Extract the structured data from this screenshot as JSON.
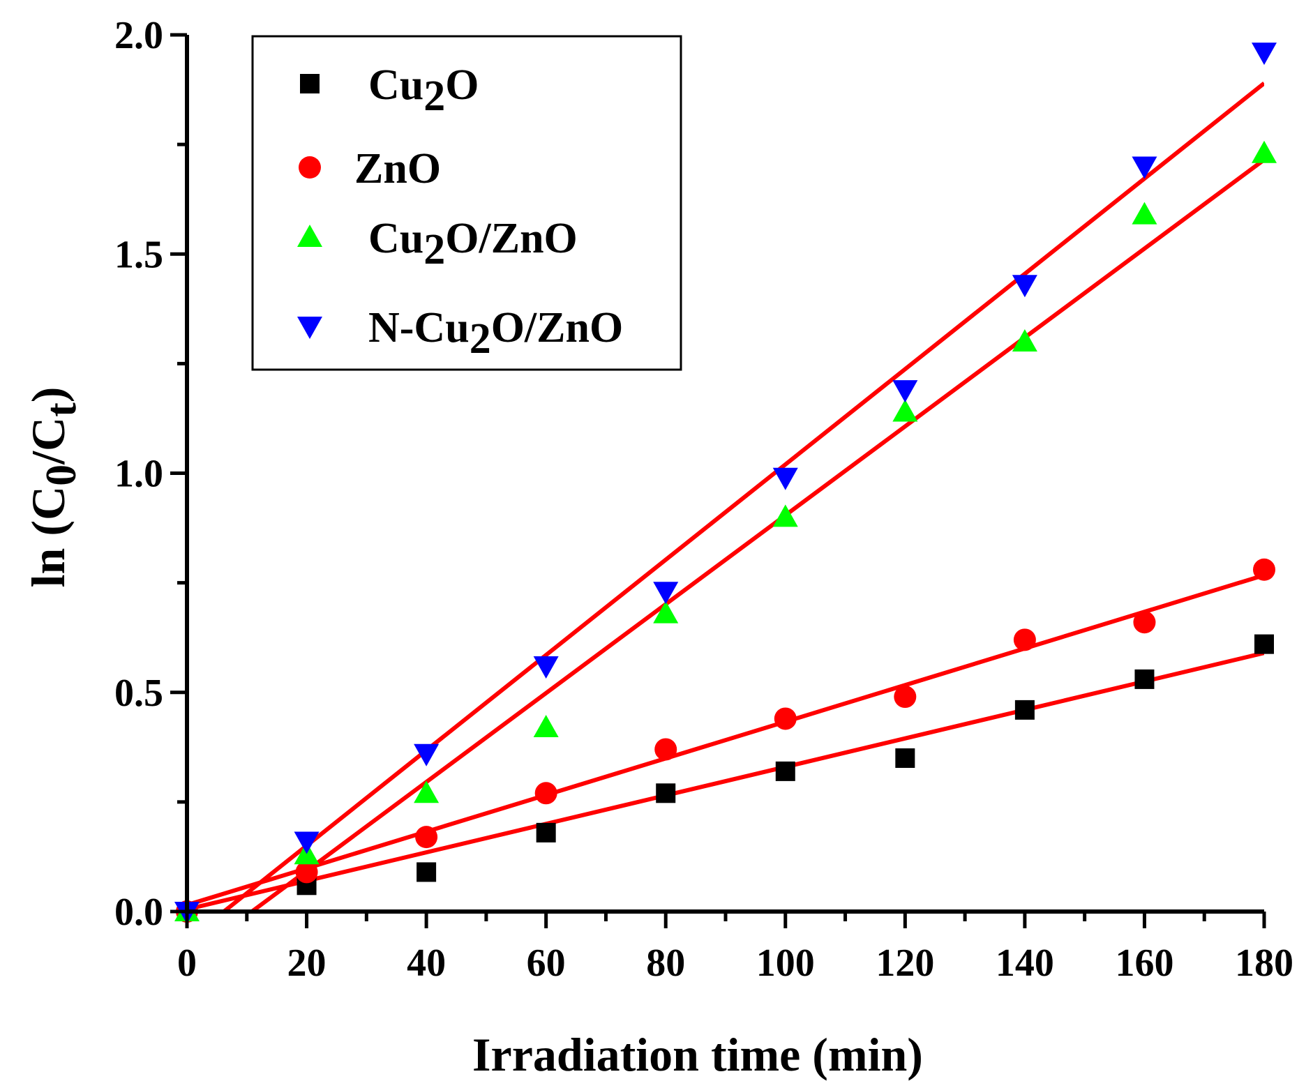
{
  "chart_data": {
    "type": "scatter",
    "title": "",
    "xlabel": "Irradiation time (min)",
    "ylabel": {
      "prefix": "ln (C",
      "sub1": "0",
      "mid": "/C",
      "sub2": "t",
      "suffix": ")"
    },
    "xlim": [
      0,
      180
    ],
    "ylim": [
      0,
      2.0
    ],
    "x_ticks": [
      0,
      20,
      40,
      60,
      80,
      100,
      120,
      140,
      160,
      180
    ],
    "x_tick_labels": [
      "0",
      "20",
      "40",
      "60",
      "80",
      "100",
      "120",
      "140",
      "160",
      "180"
    ],
    "y_ticks": [
      0,
      0.5,
      1.0,
      1.5,
      2.0
    ],
    "y_tick_labels": [
      "0.0",
      "0.5",
      "1.0",
      "1.5",
      "2.0"
    ],
    "legend_position": "top-left",
    "x": [
      0,
      20,
      40,
      60,
      80,
      100,
      120,
      140,
      160,
      180
    ],
    "series": [
      {
        "name": "Cu2O",
        "label_parts": {
          "pre": "Cu",
          "sub": "2",
          "post": "O"
        },
        "marker": "square",
        "color": "#000000",
        "values": [
          0.0,
          0.06,
          0.09,
          0.18,
          0.27,
          0.32,
          0.35,
          0.46,
          0.53,
          0.61
        ],
        "fit": {
          "slope": 0.00325,
          "intercept": 0.005
        }
      },
      {
        "name": "ZnO",
        "label_parts": {
          "pre": "ZnO",
          "sub": "",
          "post": ""
        },
        "marker": "circle",
        "color": "#ff0000",
        "values": [
          0.0,
          0.09,
          0.17,
          0.27,
          0.37,
          0.44,
          0.49,
          0.62,
          0.66,
          0.78
        ],
        "fit": {
          "slope": 0.00418,
          "intercept": 0.015
        }
      },
      {
        "name": "Cu2O/ZnO",
        "label_parts": {
          "pre": "Cu",
          "sub": "2",
          "post": "O/ZnO"
        },
        "marker": "triangle-up",
        "color": "#00ff00",
        "values": [
          0.0,
          0.13,
          0.27,
          0.42,
          0.68,
          0.9,
          1.14,
          1.3,
          1.59,
          1.73
        ],
        "fit": {
          "slope": 0.01014,
          "intercept": -0.11
        }
      },
      {
        "name": "N-Cu2O/ZnO",
        "label_parts": {
          "pre": "N-Cu",
          "sub": "2",
          "post": "O/ZnO"
        },
        "marker": "triangle-down",
        "color": "#0000ff",
        "values": [
          0.0,
          0.16,
          0.36,
          0.56,
          0.73,
          0.99,
          1.19,
          1.43,
          1.7,
          1.96
        ],
        "fit": {
          "slope": 0.01087,
          "intercept": -0.067
        }
      }
    ],
    "fit_line_color": "#ff0000"
  }
}
